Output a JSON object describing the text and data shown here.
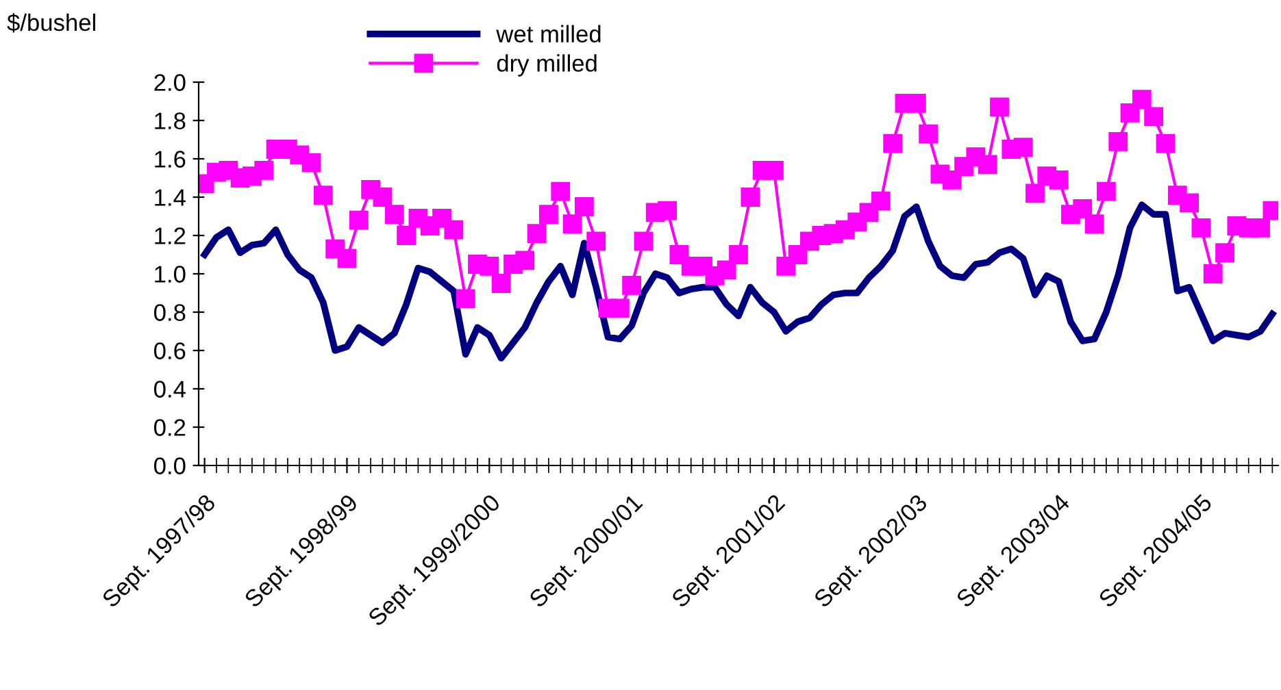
{
  "chart_data": {
    "type": "line",
    "ylabel": "$/bushel",
    "categories": [
      "Sept. 1997/98",
      null,
      null,
      null,
      null,
      null,
      null,
      null,
      null,
      null,
      null,
      null,
      "Sept. 1998/99",
      null,
      null,
      null,
      null,
      null,
      null,
      null,
      null,
      null,
      null,
      null,
      "Sept. 1999/2000",
      null,
      null,
      null,
      null,
      null,
      null,
      null,
      null,
      null,
      null,
      null,
      "Sept. 2000/01",
      null,
      null,
      null,
      null,
      null,
      null,
      null,
      null,
      null,
      null,
      null,
      "Sept. 2001/02",
      null,
      null,
      null,
      null,
      null,
      null,
      null,
      null,
      null,
      null,
      null,
      "Sept. 2002/03",
      null,
      null,
      null,
      null,
      null,
      null,
      null,
      null,
      null,
      null,
      null,
      "Sept. 2003/04",
      null,
      null,
      null,
      null,
      null,
      null,
      null,
      null,
      null,
      null,
      null,
      "Sept. 2004/05",
      null,
      null,
      null,
      null,
      null,
      null
    ],
    "series": [
      {
        "name": "wet milled",
        "color": "#000080",
        "marker": "none",
        "values": [
          1.1,
          1.19,
          1.23,
          1.11,
          1.15,
          1.16,
          1.23,
          1.1,
          1.02,
          0.98,
          0.85,
          0.6,
          0.62,
          0.72,
          0.68,
          0.64,
          0.69,
          0.84,
          1.03,
          1.01,
          0.96,
          0.91,
          0.58,
          0.72,
          0.68,
          0.56,
          0.64,
          0.72,
          0.85,
          0.96,
          1.04,
          0.89,
          1.16,
          0.93,
          0.67,
          0.66,
          0.73,
          0.9,
          1.0,
          0.98,
          0.9,
          0.92,
          0.93,
          0.93,
          0.84,
          0.78,
          0.93,
          0.85,
          0.8,
          0.7,
          0.75,
          0.77,
          0.84,
          0.89,
          0.9,
          0.9,
          0.98,
          1.04,
          1.12,
          1.3,
          1.35,
          1.17,
          1.04,
          0.99,
          0.98,
          1.05,
          1.06,
          1.11,
          1.13,
          1.08,
          0.89,
          0.99,
          0.96,
          0.75,
          0.65,
          0.66,
          0.8,
          0.99,
          1.24,
          1.36,
          1.31,
          1.31,
          0.91,
          0.93,
          0.79,
          0.65,
          0.69,
          0.68,
          0.67,
          0.7,
          0.79
        ]
      },
      {
        "name": "dry milled",
        "color": "#ff00ff",
        "marker": "square",
        "values": [
          1.47,
          1.53,
          1.54,
          1.5,
          1.51,
          1.54,
          1.65,
          1.65,
          1.62,
          1.58,
          1.41,
          1.13,
          1.08,
          1.28,
          1.44,
          1.4,
          1.31,
          1.2,
          1.29,
          1.25,
          1.29,
          1.23,
          0.87,
          1.05,
          1.04,
          0.95,
          1.05,
          1.07,
          1.21,
          1.31,
          1.43,
          1.26,
          1.35,
          1.17,
          0.82,
          0.82,
          0.94,
          1.17,
          1.32,
          1.33,
          1.1,
          1.04,
          1.04,
          0.99,
          1.02,
          1.1,
          1.4,
          1.54,
          1.54,
          1.04,
          1.1,
          1.17,
          1.2,
          1.21,
          1.23,
          1.27,
          1.32,
          1.38,
          1.68,
          1.89,
          1.89,
          1.73,
          1.52,
          1.49,
          1.56,
          1.61,
          1.57,
          1.87,
          1.65,
          1.66,
          1.42,
          1.51,
          1.49,
          1.31,
          1.34,
          1.26,
          1.43,
          1.69,
          1.84,
          1.91,
          1.82,
          1.68,
          1.41,
          1.37,
          1.24,
          1.0,
          1.11,
          1.25,
          1.24,
          1.24,
          1.33
        ]
      }
    ],
    "ylim": [
      0,
      2
    ],
    "yticks": [
      {
        "value": 0,
        "label": "0.0"
      },
      {
        "value": 0.2,
        "label": "0.2"
      },
      {
        "value": 0.4,
        "label": "0.4"
      },
      {
        "value": 0.6,
        "label": "0.6"
      },
      {
        "value": 0.8,
        "label": "0.8"
      },
      {
        "value": 1,
        "label": "1.0"
      },
      {
        "value": 1.2,
        "label": "1.2"
      },
      {
        "value": 1.4,
        "label": "1.4"
      },
      {
        "value": 1.6,
        "label": "1.6"
      },
      {
        "value": 1.8,
        "label": "1.8"
      },
      {
        "value": 2,
        "label": "2.0"
      }
    ],
    "legend": "top",
    "grid": false
  }
}
